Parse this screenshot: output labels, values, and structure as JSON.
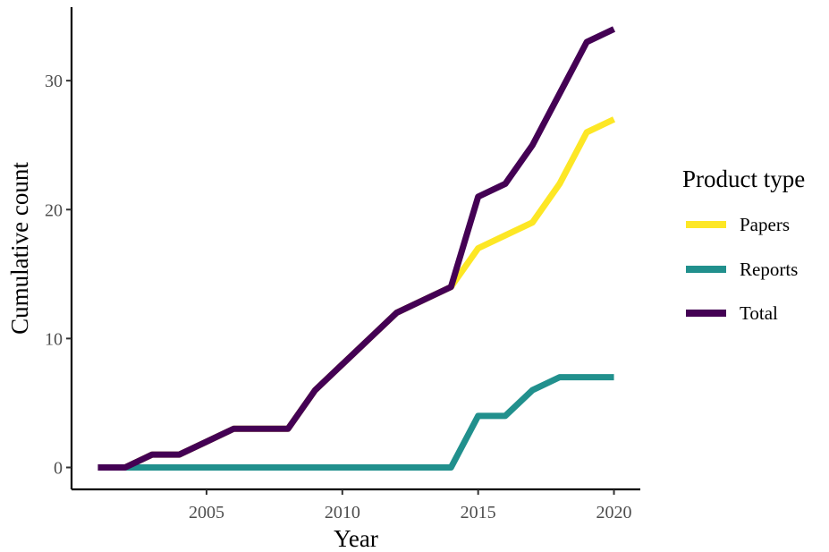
{
  "chart_data": {
    "type": "line",
    "title": "",
    "xlabel": "Year",
    "ylabel": "Cumulative count",
    "x": [
      2001,
      2002,
      2003,
      2004,
      2005,
      2006,
      2007,
      2008,
      2009,
      2010,
      2011,
      2012,
      2013,
      2014,
      2015,
      2016,
      2017,
      2018,
      2019,
      2020
    ],
    "series": [
      {
        "name": "Papers",
        "color": "#fde725",
        "values": [
          0,
          0,
          1,
          1,
          2,
          3,
          3,
          3,
          6,
          8,
          10,
          12,
          13,
          14,
          17,
          18,
          19,
          22,
          26,
          27
        ]
      },
      {
        "name": "Reports",
        "color": "#21908d",
        "values": [
          0,
          0,
          0,
          0,
          0,
          0,
          0,
          0,
          0,
          0,
          0,
          0,
          0,
          0,
          4,
          4,
          6,
          7,
          7,
          7
        ]
      },
      {
        "name": "Total",
        "color": "#440154",
        "values": [
          0,
          0,
          1,
          1,
          2,
          3,
          3,
          3,
          6,
          8,
          10,
          12,
          13,
          14,
          21,
          22,
          25,
          29,
          33,
          34
        ]
      }
    ],
    "xticks": [
      2005,
      2010,
      2015,
      2020
    ],
    "xtick_labels": [
      "2005",
      "2010",
      "2015",
      "2020"
    ],
    "yticks": [
      0,
      10,
      20,
      30
    ],
    "ytick_labels": [
      "0",
      "10",
      "20",
      "30"
    ],
    "xlim": [
      2000.03,
      2020.97
    ],
    "ylim": [
      -1.7,
      35.7
    ],
    "grid": false,
    "legend": {
      "title": "Product type",
      "placement": "right",
      "items": [
        "Papers",
        "Reports",
        "Total"
      ]
    }
  }
}
